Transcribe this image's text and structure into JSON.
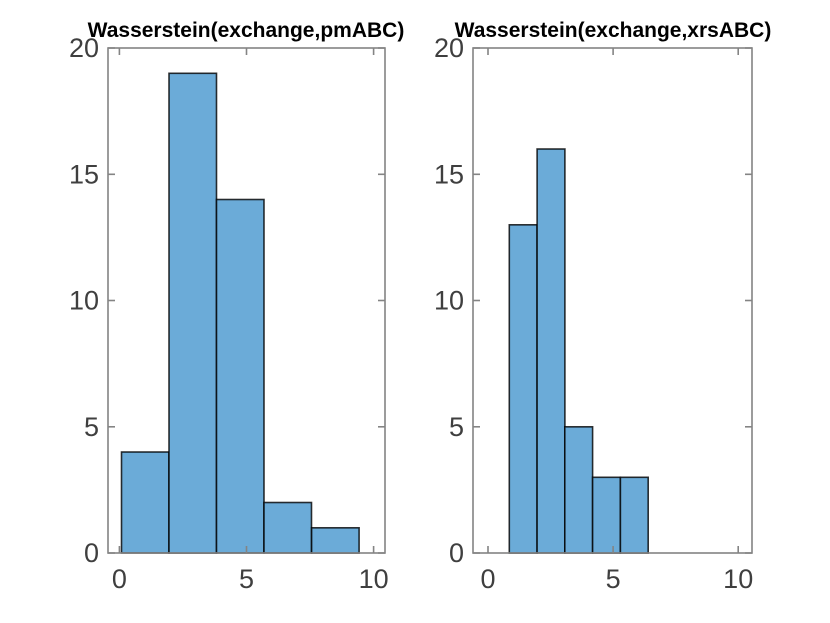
{
  "figure": {
    "kind": "matlab-style figure with two histogram subplots",
    "background": "#ffffff"
  },
  "colors": {
    "bar_face": "#6babd8",
    "bar_edge": "rgba(0,0,0,0.8)",
    "axis": "#848484",
    "tick_label": "#3f3f3f",
    "title": "#000000"
  },
  "chart_data": [
    {
      "type": "bar",
      "subtype": "histogram",
      "title": "Wasserstein(exchange,pmABC)",
      "bin_edges": [
        0.08,
        1.95,
        3.82,
        5.69,
        7.56,
        9.43
      ],
      "counts": [
        4,
        19,
        14,
        2,
        1
      ],
      "xlim": [
        -0.45,
        10.45
      ],
      "ylim": [
        0,
        20
      ],
      "xticks": [
        0,
        5,
        10
      ],
      "yticks": [
        0,
        5,
        10,
        15,
        20
      ],
      "grid": false,
      "legend_position": "none",
      "xlabel": "",
      "ylabel": ""
    },
    {
      "type": "bar",
      "subtype": "histogram",
      "title": "Wasserstein(exchange,xrsABC)",
      "bin_edges": [
        0.85,
        1.96,
        3.07,
        4.18,
        5.29,
        6.4
      ],
      "counts": [
        13,
        16,
        5,
        3,
        3
      ],
      "xlim": [
        -0.6,
        10.55
      ],
      "ylim": [
        0,
        20
      ],
      "xticks": [
        0,
        5,
        10
      ],
      "yticks": [
        0,
        5,
        10,
        15,
        20
      ],
      "grid": false,
      "legend_position": "none",
      "xlabel": "",
      "ylabel": ""
    }
  ]
}
